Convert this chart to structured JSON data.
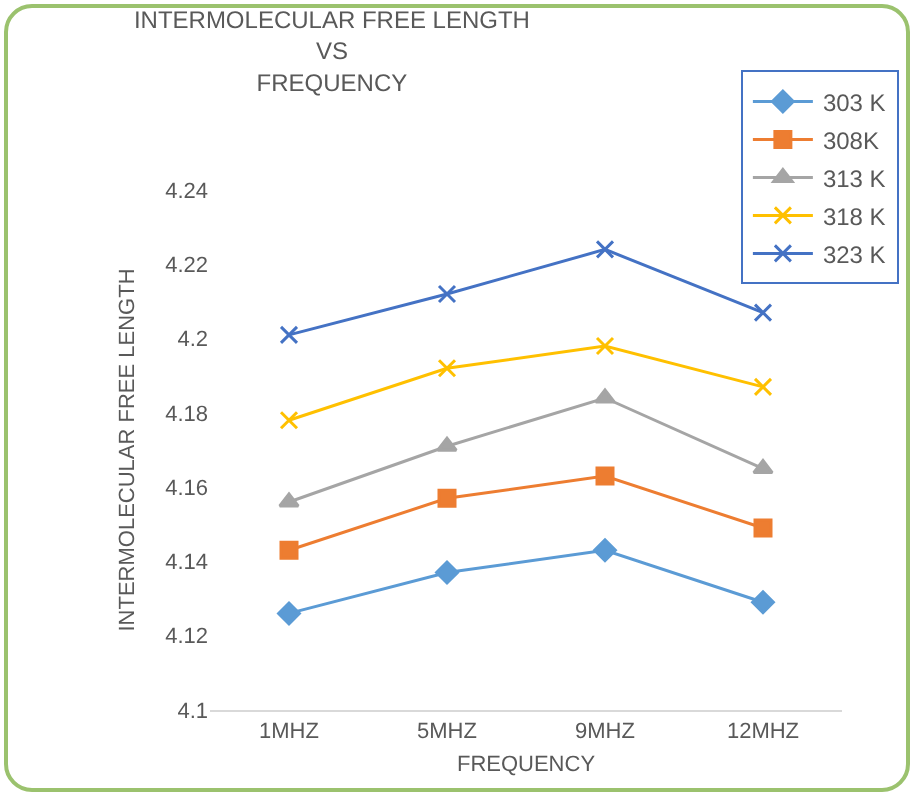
{
  "chart_data": {
    "type": "line",
    "title": "INTERMOLECULAR FREE LENGTH\nVS\nFREQUENCY",
    "xlabel": "FREQUENCY",
    "ylabel": "INTERMOLECULAR FREE LENGTH",
    "categories": [
      "1MHZ",
      "5MHZ",
      "9MHZ",
      "12MHZ"
    ],
    "series": [
      {
        "name": "303 K",
        "color": "#5b9bd5",
        "marker": "diamond",
        "values": [
          4.126,
          4.137,
          4.143,
          4.129
        ]
      },
      {
        "name": "308K",
        "color": "#ed7d31",
        "marker": "square",
        "values": [
          4.143,
          4.157,
          4.163,
          4.149
        ]
      },
      {
        "name": "313 K",
        "color": "#a5a5a5",
        "marker": "triangle",
        "values": [
          4.156,
          4.171,
          4.184,
          4.165
        ]
      },
      {
        "name": "318 K",
        "color": "#ffc000",
        "marker": "cross",
        "values": [
          4.178,
          4.192,
          4.198,
          4.187
        ]
      },
      {
        "name": "323 K",
        "color": "#4472c4",
        "marker": "cross",
        "values": [
          4.201,
          4.212,
          4.224,
          4.207
        ]
      }
    ],
    "ylim": [
      4.1,
      4.24
    ],
    "yticks": [
      4.1,
      4.12,
      4.14,
      4.16,
      4.18,
      4.2,
      4.22,
      4.24
    ],
    "legend": "top right"
  }
}
